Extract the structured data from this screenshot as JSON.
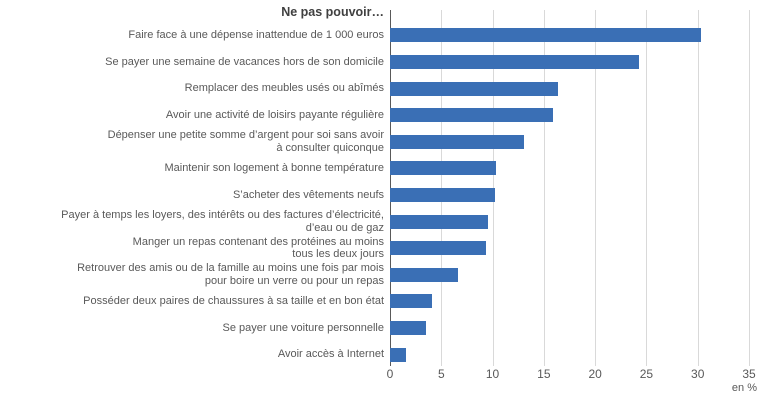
{
  "chart_data": {
    "type": "bar",
    "orientation": "horizontal",
    "title": "Ne pas pouvoir…",
    "unit_label": "en %",
    "xlabel": "",
    "ylabel": "",
    "xlim": [
      0,
      35
    ],
    "xticks": [
      0,
      5,
      10,
      15,
      20,
      25,
      30,
      35
    ],
    "grid": "vertical",
    "legend": "none",
    "bar_color": "#3a6fb5",
    "categories": [
      "Faire face à une dépense inattendue de 1 000 euros",
      "Se payer une semaine de vacances hors de son domicile",
      "Remplacer des meubles usés ou abîmés",
      "Avoir une activité de loisirs payante régulière",
      "Dépenser une petite somme d’argent pour soi sans avoir\nà consulter quiconque",
      "Maintenir son logement à bonne température",
      "S’acheter des vêtements neufs",
      "Payer à temps les loyers, des intérêts ou des factures d’électricité,\nd’eau ou de gaz",
      "Manger un repas contenant des protéines au moins\ntous les deux jours",
      "Retrouver des amis ou de la famille au moins une fois par mois\npour boire un verre ou pour un repas",
      "Posséder deux paires de chaussures à sa taille et en bon état",
      "Se payer une voiture personnelle",
      "Avoir accès à Internet"
    ],
    "values": [
      30.3,
      24.3,
      16.4,
      15.9,
      13.1,
      10.3,
      10.2,
      9.6,
      9.4,
      6.6,
      4.1,
      3.5,
      1.6
    ]
  },
  "colors": {
    "bar": "#3a6fb5",
    "gridline": "#d9d9d9",
    "axis_line": "#595959",
    "label_text": "#595959",
    "title_text": "#404040",
    "background": "#ffffff"
  }
}
